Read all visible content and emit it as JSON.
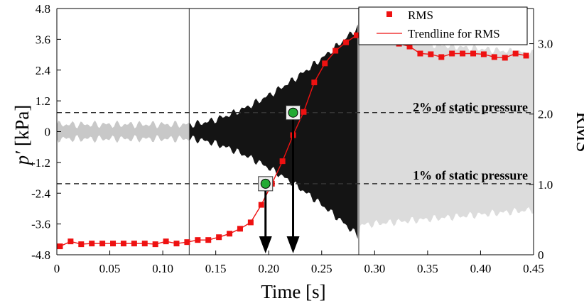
{
  "chart_data": {
    "type": "line",
    "xlabel": "Time [s]",
    "ylabel_left_main": "p",
    "ylabel_left_prime": "′",
    "ylabel_left_unit": " [kPa]",
    "ylabel_right": "RMS",
    "xlim": [
      0,
      0.45
    ],
    "ylim_left": [
      -4.8,
      4.8
    ],
    "ylim_right": [
      0,
      3.5
    ],
    "x_ticks": [
      "0",
      "0.05",
      "0.10",
      "0.15",
      "0.20",
      "0.25",
      "0.30",
      "0.35",
      "0.40",
      "0.45"
    ],
    "x_tick_values": [
      0,
      0.05,
      0.1,
      0.15,
      0.2,
      0.25,
      0.3,
      0.35,
      0.4,
      0.45
    ],
    "y_left_ticks": [
      "4.8",
      "3.6",
      "2.4",
      "1.2",
      "0",
      "-1.2",
      "-2.4",
      "-3.6",
      "-4.8"
    ],
    "y_left_tick_values": [
      4.8,
      3.6,
      2.4,
      1.2,
      0,
      -1.2,
      -2.4,
      -3.6,
      -4.8
    ],
    "y_right_ticks": [
      "0",
      "1.0",
      "2.0",
      "3.0"
    ],
    "y_right_tick_values": [
      0,
      1.0,
      2.0,
      3.0
    ],
    "vertical_lines_x": [
      0.125,
      0.285
    ],
    "thresholds": [
      {
        "label": "2% of static pressure",
        "rms": 2.02
      },
      {
        "label": "1% of static pressure",
        "rms": 1.01
      }
    ],
    "markers": [
      {
        "x": 0.197,
        "rms": 1.01
      },
      {
        "x": 0.223,
        "rms": 2.02
      }
    ],
    "legend": {
      "position": "top-right",
      "entries": [
        "RMS",
        "Trendline for RMS"
      ]
    },
    "series": [
      {
        "name": "RMS",
        "axis": "right",
        "color": "#ee1111",
        "x": [
          0.003,
          0.013,
          0.023,
          0.033,
          0.043,
          0.053,
          0.063,
          0.073,
          0.083,
          0.093,
          0.103,
          0.113,
          0.123,
          0.133,
          0.143,
          0.153,
          0.163,
          0.173,
          0.183,
          0.193,
          0.203,
          0.213,
          0.223,
          0.233,
          0.243,
          0.253,
          0.263,
          0.273,
          0.283,
          0.293,
          0.303,
          0.313,
          0.323,
          0.333,
          0.343,
          0.353,
          0.363,
          0.373,
          0.383,
          0.393,
          0.403,
          0.413,
          0.423,
          0.433,
          0.443
        ],
        "y": [
          0.12,
          0.19,
          0.15,
          0.16,
          0.16,
          0.16,
          0.16,
          0.16,
          0.16,
          0.15,
          0.19,
          0.16,
          0.18,
          0.21,
          0.21,
          0.25,
          0.3,
          0.37,
          0.46,
          0.71,
          1.01,
          1.33,
          1.7,
          2.03,
          2.45,
          2.72,
          2.9,
          3.02,
          3.12,
          3.07,
          3.07,
          3.06,
          3.0,
          2.96,
          2.86,
          2.85,
          2.81,
          2.86,
          2.86,
          2.86,
          2.85,
          2.81,
          2.8,
          2.86,
          2.83
        ]
      }
    ]
  }
}
